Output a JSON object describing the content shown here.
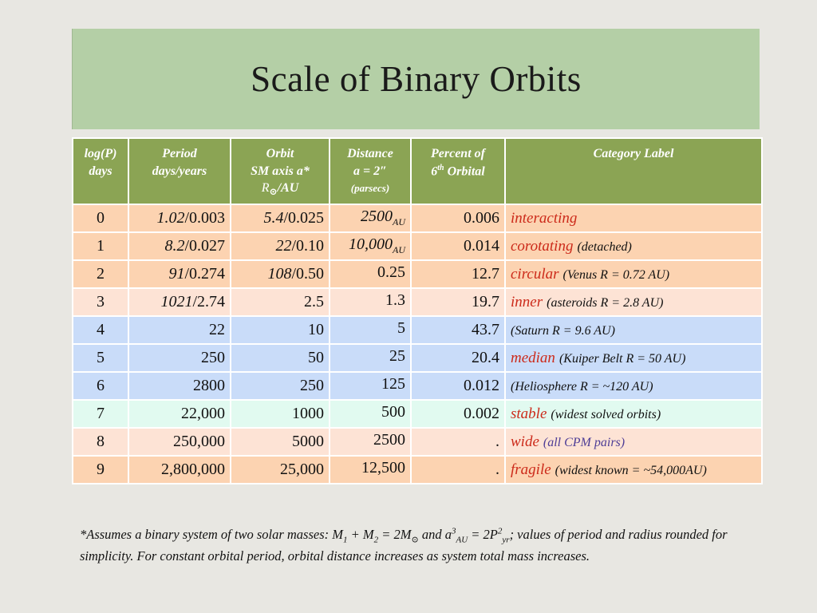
{
  "title": "Scale of Binary Orbits",
  "headers": {
    "log_p_line1": "log(P)",
    "log_p_line2": "days",
    "period_line1": "Period",
    "period_line2": "days/years",
    "orbit_line1": "Orbit",
    "orbit_line2": "SM axis a*",
    "orbit_line3_sym": "R",
    "orbit_line3_sub": "⊙",
    "orbit_line3_rest": "/AU",
    "distance_line1": "Distance",
    "distance_line2": "a = 2″",
    "distance_line3": "(parsecs)",
    "percent_line1": "Percent of",
    "percent_line2_num": "6",
    "percent_line2_sup": "th",
    "percent_line2_rest": "Orbital",
    "category": "Category Label"
  },
  "rows": [
    {
      "log": "0",
      "period_it": "1.02",
      "period": "/0.003",
      "orbit_it": "5.4",
      "orbit": "/0.025",
      "dist_it": "2500",
      "dist_sub": "AU",
      "dist": "",
      "pct": "0.006",
      "cat_red": "interacting",
      "cat_note": "",
      "cat_note_blue": ""
    },
    {
      "log": "1",
      "period_it": "8.2",
      "period": "/0.027",
      "orbit_it": "22",
      "orbit": "/0.10",
      "dist_it": "10,000",
      "dist_sub": "AU",
      "dist": "",
      "pct": "0.014",
      "cat_red": "corotating",
      "cat_note": "(detached)",
      "cat_note_blue": ""
    },
    {
      "log": "2",
      "period_it": "91",
      "period": "/0.274",
      "orbit_it": "108",
      "orbit": "/0.50",
      "dist_it": "",
      "dist_sub": "",
      "dist": "0.25",
      "pct": "12.7",
      "cat_red": "circular",
      "cat_note": "(Venus R = 0.72 AU)",
      "cat_note_blue": ""
    },
    {
      "log": "3",
      "period_it": "1021",
      "period": "/2.74",
      "orbit_it": "",
      "orbit": "2.5",
      "dist_it": "",
      "dist_sub": "",
      "dist": "1.3",
      "pct": "19.7",
      "cat_red": "inner",
      "cat_note": "(asteroids R = 2.8 AU)",
      "cat_note_blue": ""
    },
    {
      "log": "4",
      "period_it": "",
      "period": "22",
      "orbit_it": "",
      "orbit": "10",
      "dist_it": "",
      "dist_sub": "",
      "dist": "5",
      "pct": "43.7",
      "cat_red": "",
      "cat_note": "(Saturn R = 9.6 AU)",
      "cat_note_blue": ""
    },
    {
      "log": "5",
      "period_it": "",
      "period": "250",
      "orbit_it": "",
      "orbit": "50",
      "dist_it": "",
      "dist_sub": "",
      "dist": "25",
      "pct": "20.4",
      "cat_red": "median",
      "cat_note": "(Kuiper Belt R = 50 AU)",
      "cat_note_blue": ""
    },
    {
      "log": "6",
      "period_it": "",
      "period": "2800",
      "orbit_it": "",
      "orbit": "250",
      "dist_it": "",
      "dist_sub": "",
      "dist": "125",
      "pct": "0.012",
      "cat_red": "",
      "cat_note": "(Heliosphere R = ~120 AU)",
      "cat_note_blue": ""
    },
    {
      "log": "7",
      "period_it": "",
      "period": "22,000",
      "orbit_it": "",
      "orbit": "1000",
      "dist_it": "",
      "dist_sub": "",
      "dist": "500",
      "pct": "0.002",
      "cat_red": "stable",
      "cat_note": "(widest solved orbits)",
      "cat_note_blue": ""
    },
    {
      "log": "8",
      "period_it": "",
      "period": "250,000",
      "orbit_it": "",
      "orbit": "5000",
      "dist_it": "",
      "dist_sub": "",
      "dist": "2500",
      "pct": ".",
      "cat_red": "wide",
      "cat_note": "",
      "cat_note_blue": "(all CPM pairs)"
    },
    {
      "log": "9",
      "period_it": "",
      "period": "2,800,000",
      "orbit_it": "",
      "orbit": "25,000",
      "dist_it": "",
      "dist_sub": "",
      "dist": "12,500",
      "pct": ".",
      "cat_red": "fragile",
      "cat_note": "(widest known = ~54,000AU)",
      "cat_note_blue": ""
    }
  ],
  "footnote": {
    "p1": "*Assumes a binary system of two solar masses: M",
    "s1": "1",
    "p2": " + M",
    "s2": "2",
    "p3": " = 2M",
    "s3": "⊙",
    "p4": " and a",
    "sup1": "3",
    "s4": "AU",
    "p5": " = 2P",
    "sup2": "2",
    "s5": "yr",
    "p6": "; values of period and radius rounded for simplicity. For constant orbital period, orbital distance increases as system total mass increases."
  },
  "colors": {
    "title_band": "#b4cfa6",
    "header": "#8ba454",
    "peach": "#fcd3b1",
    "light_peach": "#fde3d5",
    "blue": "#c9dcf9",
    "mint": "#e1faf0",
    "category_red": "#cc2a1a",
    "note_purple": "#4e3d96"
  }
}
